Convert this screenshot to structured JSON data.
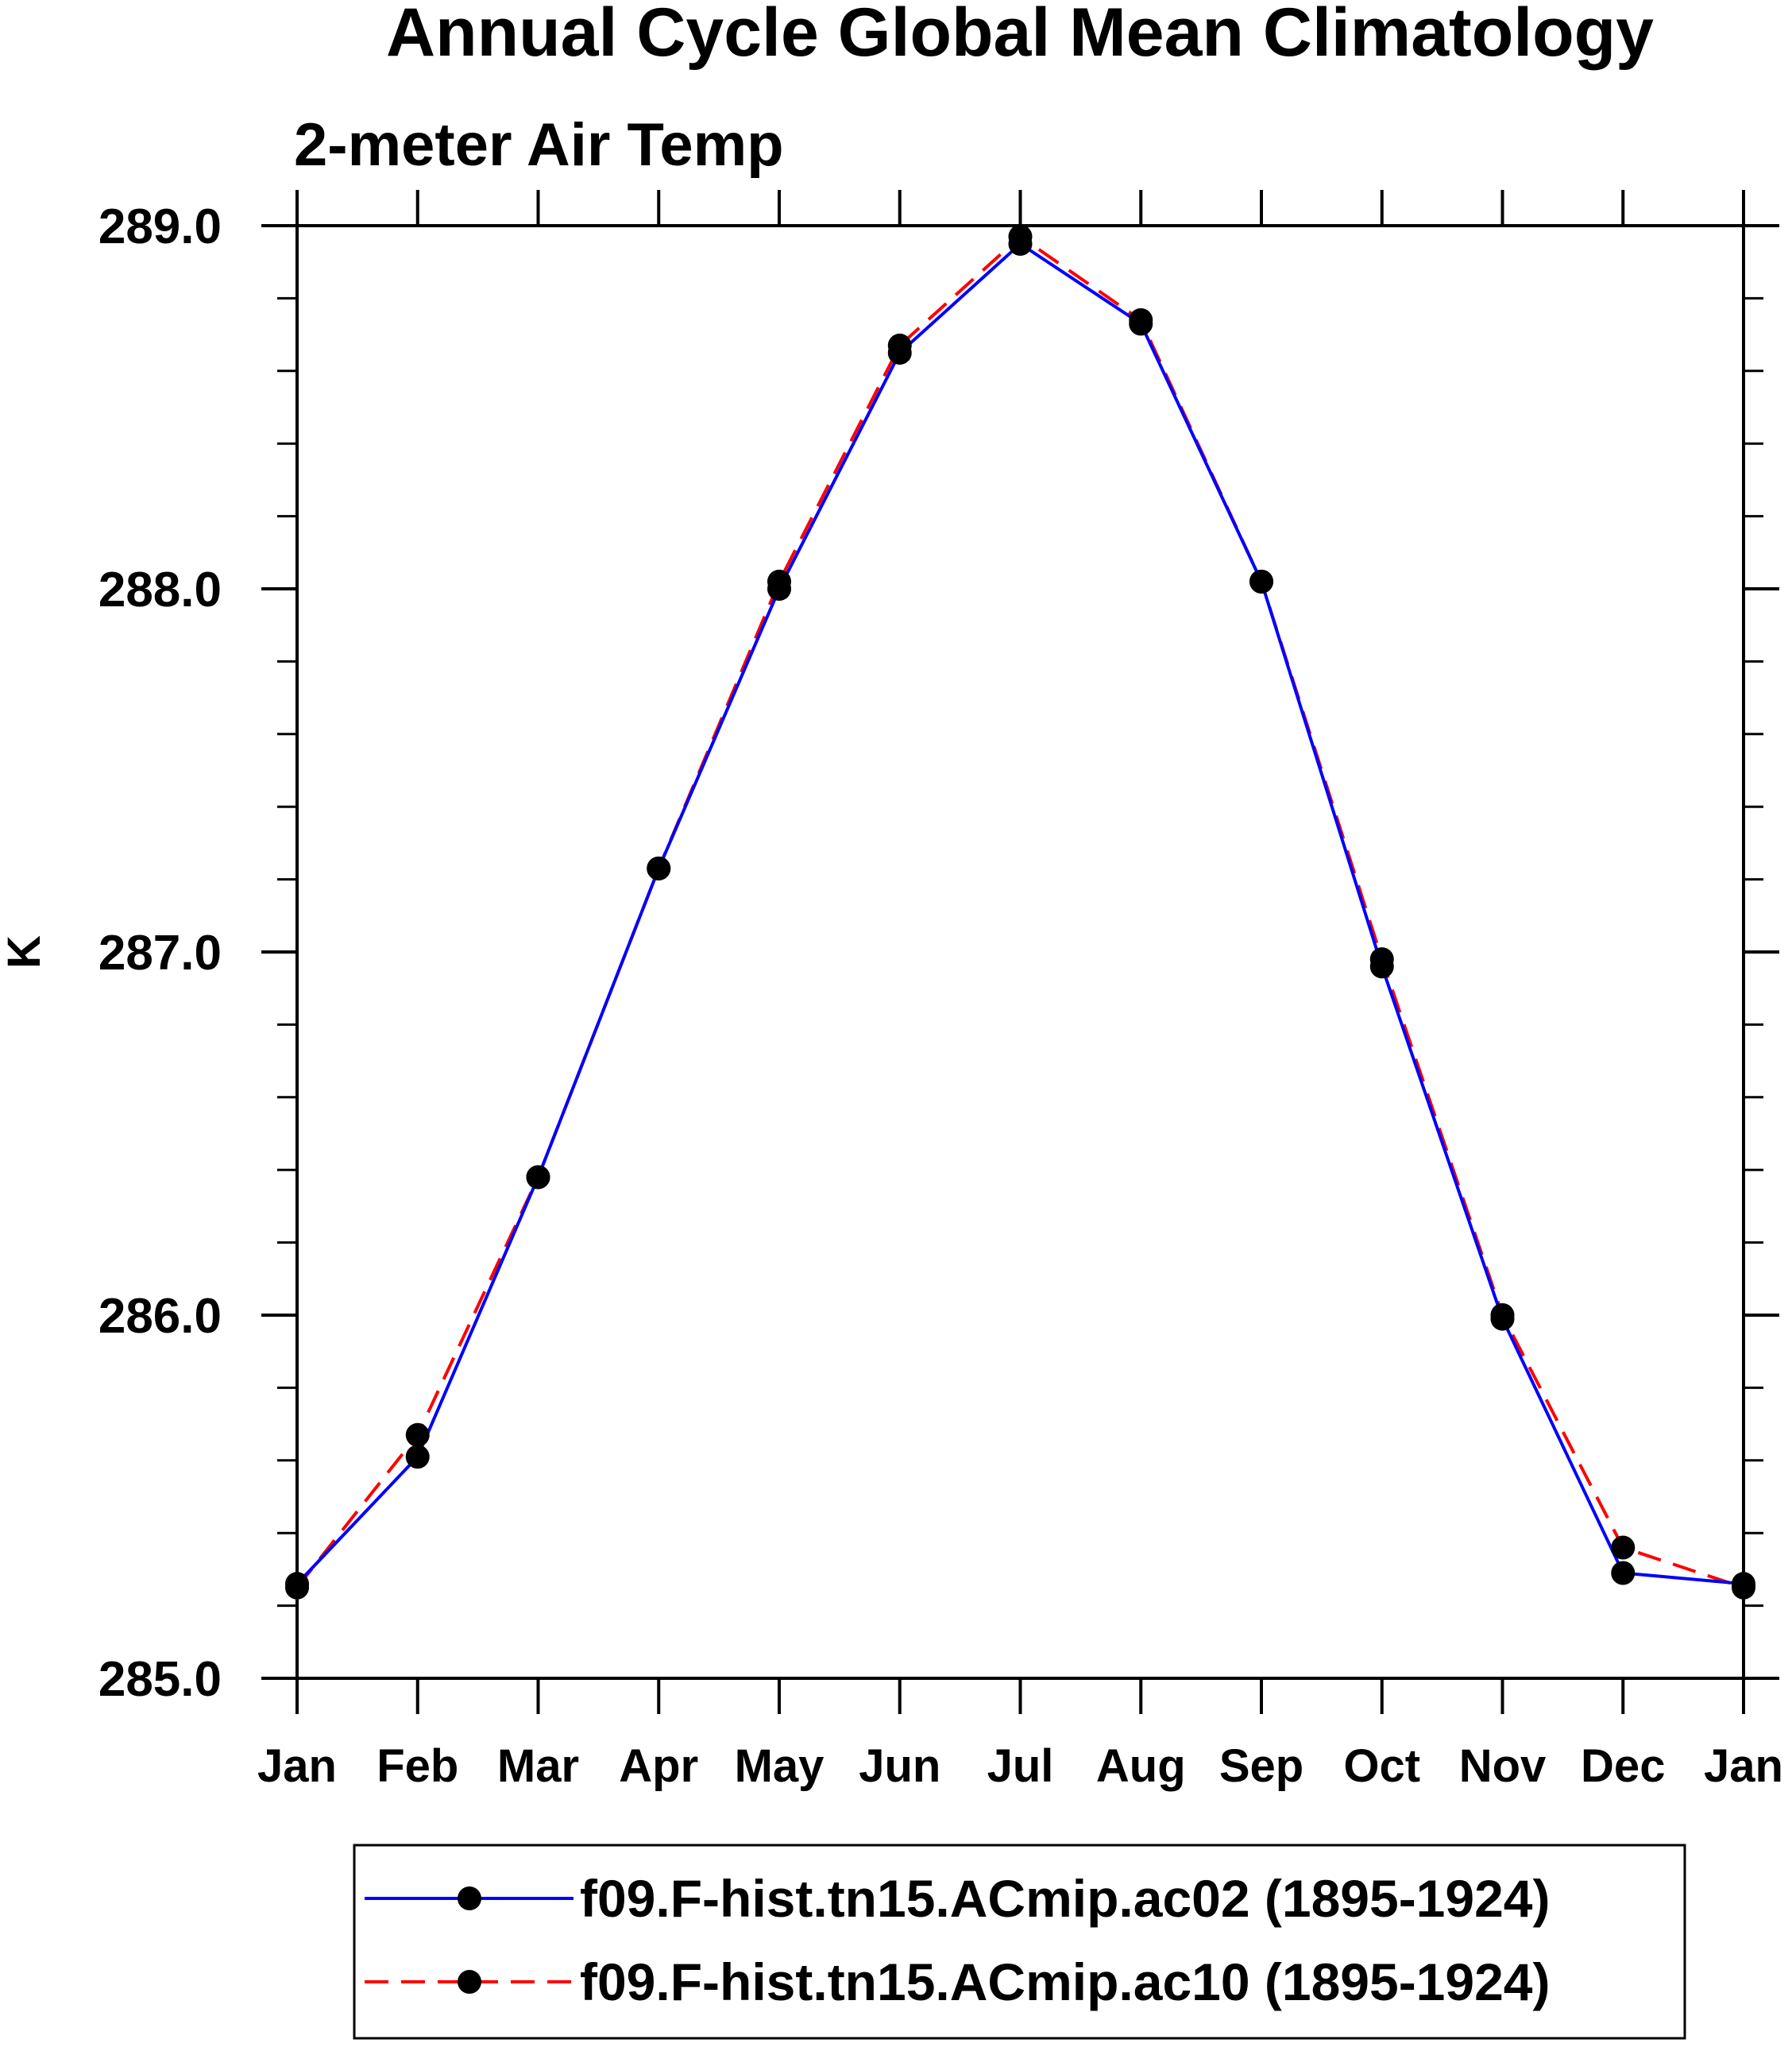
{
  "chart_data": {
    "type": "line",
    "title": "Annual Cycle Global Mean Climatology",
    "subtitle": "2-meter Air Temp",
    "xlabel": "",
    "ylabel": "K",
    "categories": [
      "Jan",
      "Feb",
      "Mar",
      "Apr",
      "May",
      "Jun",
      "Jul",
      "Aug",
      "Sep",
      "Oct",
      "Nov",
      "Dec",
      "Jan"
    ],
    "ylim": [
      285.0,
      289.0
    ],
    "yticks": [
      "285.0",
      "286.0",
      "287.0",
      "288.0",
      "289.0"
    ],
    "ytick_values": [
      285.0,
      286.0,
      287.0,
      288.0,
      289.0
    ],
    "yminor_step": 0.2,
    "grid": false,
    "legend_placement": "bottom",
    "series": [
      {
        "name": "f09.F-hist.tn15.ACmip.ac02 (1895-1924)",
        "color": "#0000ff",
        "style": "solid",
        "marker": "filled-circle",
        "values": [
          285.26,
          285.61,
          286.38,
          287.23,
          288.0,
          288.65,
          288.95,
          288.73,
          288.02,
          286.96,
          285.99,
          285.29,
          285.26
        ]
      },
      {
        "name": "f09.F-hist.tn15.ACmip.ac10 (1895-1924)",
        "color": "#ff0000",
        "style": "dashed",
        "marker": "filled-circle",
        "values": [
          285.25,
          285.67,
          286.38,
          287.23,
          288.02,
          288.67,
          288.97,
          288.74,
          288.02,
          286.98,
          286.0,
          285.36,
          285.25
        ]
      }
    ]
  }
}
